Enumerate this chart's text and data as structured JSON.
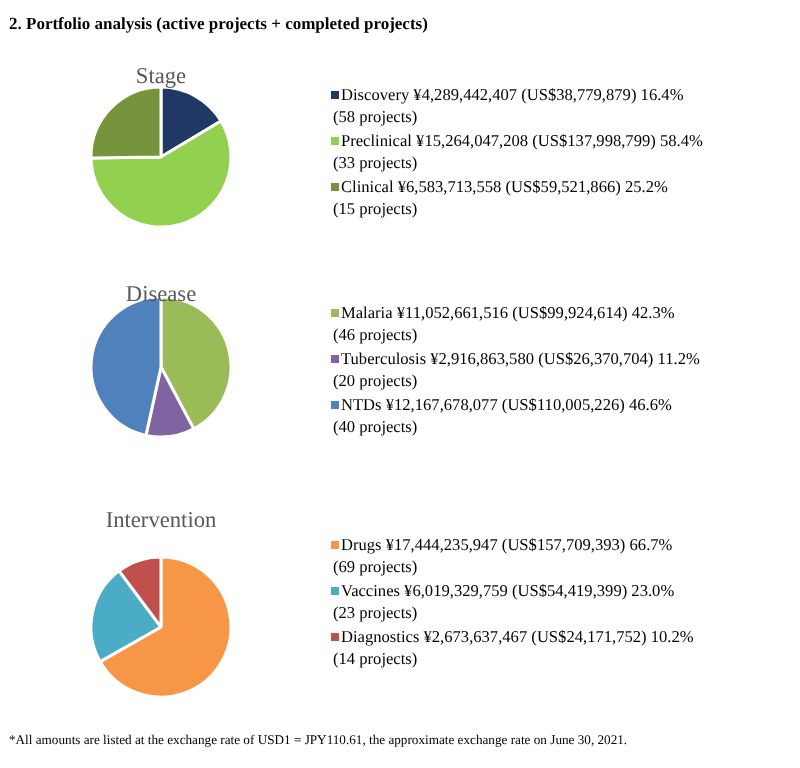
{
  "chart_data": [
    {
      "type": "pie",
      "title": "Stage",
      "legend": "right",
      "annotations": [
        "2. Portfolio analysis (active projects + completed projects)"
      ],
      "categories": [
        "Discovery",
        "Preclinical",
        "Clinical"
      ],
      "values": [
        16.4,
        58.4,
        25.2
      ],
      "colors": [
        "#203864",
        "#92d050",
        "#77933c"
      ],
      "value_labels": [
        "¥4,289,442,407 (US$38,779,879)     16.4% (58 projects)",
        "¥15,264,047,208  (US$137,998,799) 58.4% (33 projects)",
        "¥6,583,713,558  (US$59,521,866)       25.2% (15 projects)"
      ]
    },
    {
      "type": "pie",
      "title": "Disease",
      "legend": "right",
      "categories": [
        "Malaria",
        "Tuberculosis",
        "NTDs"
      ],
      "values": [
        42.3,
        11.2,
        46.6
      ],
      "colors": [
        "#9bbb59",
        "#8064a2",
        "#4f81bd"
      ],
      "value_labels": [
        "¥11,052,661,516 (US$99,924,614)       42.3% (46 projects)",
        "¥2,916,863,580  (US$26,370,704) 11.2% (20 projects)",
        "¥12,167,678,077  (US$110,005,226)      46.6% (40 projects)"
      ]
    },
    {
      "type": "pie",
      "title": "Intervention",
      "legend": "right",
      "annotations": [
        "*All amounts are listed at the exchange rate of USD1 = JPY110.61, the approximate exchange rate on June 30, 2021."
      ],
      "categories": [
        "Drugs",
        "Vaccines",
        "Diagnostics"
      ],
      "values": [
        66.7,
        23.0,
        10.2
      ],
      "colors": [
        "#f79646",
        "#4bacc6",
        "#c0504d"
      ],
      "value_labels": [
        "¥17,444,235,947  (US$157,709,393)       66.7% (69 projects)",
        "¥6,019,329,759  (US$54,419,399)         23.0% (23 projects)",
        "¥2,673,637,467  (US$24,171,752)       10.2% (14 projects)"
      ]
    }
  ]
}
